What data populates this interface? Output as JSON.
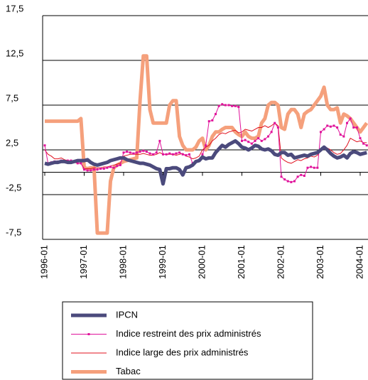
{
  "chart_data": {
    "type": "line",
    "categories": [
      "1996-01",
      null,
      null,
      null,
      null,
      null,
      null,
      null,
      null,
      null,
      null,
      null,
      "1997-01",
      null,
      null,
      null,
      null,
      null,
      null,
      null,
      null,
      null,
      null,
      null,
      "1998-01",
      null,
      null,
      null,
      null,
      null,
      null,
      null,
      null,
      null,
      null,
      null,
      "1999-01",
      null,
      null,
      null,
      null,
      null,
      null,
      null,
      null,
      null,
      null,
      null,
      "2000-01",
      null,
      null,
      null,
      null,
      null,
      null,
      null,
      null,
      null,
      null,
      null,
      "2001-01",
      null,
      null,
      null,
      null,
      null,
      null,
      null,
      null,
      null,
      null,
      null,
      "2002-01",
      null,
      null,
      null,
      null,
      null,
      null,
      null,
      null,
      null,
      null,
      null,
      "2003-01",
      null,
      null,
      null,
      null,
      null,
      null,
      null,
      null,
      null,
      null,
      null,
      "2004-01",
      null,
      null
    ],
    "series": [
      {
        "name": "IPCN",
        "color": "#4b4a7c",
        "width": 5,
        "markers": false,
        "values": [
          1.0,
          0.9,
          1.0,
          1.1,
          1.1,
          1.2,
          1.2,
          1.1,
          1.1,
          1.2,
          1.3,
          1.3,
          1.3,
          1.4,
          1.1,
          0.9,
          0.8,
          0.9,
          1.0,
          1.1,
          1.3,
          1.4,
          1.5,
          1.6,
          1.6,
          1.4,
          1.3,
          1.2,
          1.1,
          1.0,
          1.0,
          0.9,
          0.8,
          0.6,
          0.4,
          0.3,
          -1.3,
          0.4,
          0.4,
          0.5,
          0.5,
          0.3,
          -0.3,
          0.5,
          0.6,
          0.8,
          1.2,
          1.3,
          1.7,
          1.5,
          1.6,
          1.6,
          2.2,
          2.6,
          3.0,
          2.8,
          3.1,
          3.3,
          3.5,
          3.2,
          2.8,
          2.7,
          2.5,
          2.7,
          3.0,
          2.9,
          2.6,
          2.5,
          2.6,
          2.4,
          2.0,
          1.9,
          2.2,
          2.2,
          1.9,
          2.0,
          1.6,
          1.7,
          1.8,
          1.9,
          1.8,
          2.0,
          2.1,
          2.2,
          2.5,
          2.8,
          2.5,
          2.1,
          1.8,
          1.6,
          1.7,
          1.9,
          1.6,
          2.1,
          2.3,
          2.2,
          2.0,
          2.1,
          2.2
        ]
      },
      {
        "name": "Indice restreint des prix administrés",
        "color": "#e0129a",
        "width": 1,
        "markers": true,
        "values": [
          3.0,
          1.0,
          1.1,
          1.2,
          1.2,
          1.3,
          1.2,
          1.3,
          1.3,
          1.2,
          1.0,
          1.0,
          0.3,
          0.2,
          0.2,
          0.3,
          0.3,
          0.4,
          0.4,
          0.5,
          0.6,
          0.5,
          0.7,
          0.8,
          2.2,
          2.3,
          2.2,
          2.1,
          2.2,
          2.3,
          2.4,
          2.3,
          2.1,
          2.0,
          2.2,
          3.5,
          2.0,
          2.0,
          2.1,
          2.0,
          2.1,
          2.2,
          2.0,
          1.9,
          2.0,
          1.0,
          1.2,
          1.3,
          2.0,
          3.0,
          5.7,
          5.8,
          6.5,
          7.4,
          7.6,
          7.5,
          7.5,
          7.4,
          7.4,
          7.3,
          3.5,
          3.6,
          3.4,
          3.2,
          3.5,
          3.8,
          3.5,
          3.7,
          4.0,
          4.5,
          5.5,
          5.0,
          -0.5,
          -0.8,
          -1.0,
          -1.1,
          -1.0,
          -0.5,
          -0.3,
          -0.4,
          0.5,
          0.6,
          0.5,
          0.5,
          4.5,
          4.8,
          5.2,
          5.1,
          5.2,
          5.0,
          4.2,
          4.0,
          5.5,
          6.0,
          5.0,
          5.0,
          3.8,
          3.2,
          3.0
        ]
      },
      {
        "name": "Indice large des prix administrés",
        "color": "#e0101e",
        "width": 1,
        "markers": false,
        "values": [
          2.5,
          2.0,
          1.8,
          1.5,
          1.5,
          1.6,
          1.4,
          1.3,
          1.2,
          1.1,
          1.0,
          1.0,
          0.4,
          0.4,
          0.4,
          0.5,
          0.5,
          0.5,
          0.6,
          0.6,
          0.7,
          0.8,
          0.9,
          1.0,
          1.8,
          1.9,
          2.0,
          2.0,
          2.0,
          2.0,
          2.1,
          2.0,
          1.9,
          1.9,
          2.0,
          2.2,
          2.0,
          2.0,
          2.0,
          2.0,
          1.9,
          2.0,
          2.1,
          1.8,
          1.7,
          1.5,
          1.6,
          1.8,
          2.5,
          2.8,
          3.0,
          3.5,
          3.8,
          4.2,
          4.4,
          4.3,
          4.5,
          4.6,
          4.7,
          4.4,
          4.5,
          4.8,
          4.7,
          4.6,
          4.8,
          5.0,
          5.0,
          5.2,
          5.0,
          5.2,
          5.5,
          5.2,
          1.6,
          1.3,
          1.1,
          1.0,
          1.2,
          1.4,
          1.3,
          1.5,
          1.6,
          1.8,
          1.7,
          1.9,
          2.5,
          2.8,
          2.7,
          2.5,
          2.2,
          2.0,
          2.1,
          2.5,
          3.0,
          3.8,
          3.6,
          3.4,
          3.5,
          3.3,
          3.3
        ]
      },
      {
        "name": "Tabac",
        "color": "#f5a07c",
        "width": 5,
        "markers": false,
        "values": [
          5.7,
          5.7,
          5.7,
          5.7,
          5.7,
          5.7,
          5.7,
          5.7,
          5.7,
          5.7,
          5.7,
          6.0,
          0.5,
          0.4,
          0.5,
          0.5,
          -6.8,
          -6.8,
          -6.8,
          -6.8,
          -1.0,
          0.5,
          0.8,
          1.0,
          1.2,
          1.3,
          1.4,
          1.5,
          1.6,
          8.0,
          13.0,
          13.0,
          7.0,
          5.5,
          5.5,
          5.5,
          5.5,
          5.5,
          7.5,
          8.0,
          8.0,
          4.0,
          3.0,
          2.5,
          2.5,
          2.5,
          2.8,
          3.5,
          3.8,
          2.5,
          3.0,
          4.0,
          4.5,
          4.5,
          4.8,
          5.0,
          5.0,
          5.0,
          4.5,
          4.2,
          4.0,
          4.5,
          4.0,
          3.8,
          3.8,
          4.0,
          5.5,
          6.0,
          7.5,
          7.8,
          7.8,
          7.5,
          5.0,
          4.8,
          6.5,
          7.0,
          7.0,
          6.5,
          5.0,
          6.5,
          6.8,
          7.0,
          7.5,
          8.0,
          8.5,
          9.5,
          7.5,
          7.0,
          7.0,
          7.2,
          5.5,
          6.5,
          6.3,
          6.0,
          5.5,
          5.0,
          4.5,
          5.0,
          5.5
        ]
      }
    ],
    "ylim": [
      -7.5,
      17.5
    ],
    "yticks": [
      {
        "value": -7.5,
        "label": "-7,5"
      },
      {
        "value": -2.5,
        "label": "-2,5"
      },
      {
        "value": 2.5,
        "label": "2,5"
      },
      {
        "value": 7.5,
        "label": "7,5"
      },
      {
        "value": 12.5,
        "label": "12,5"
      },
      {
        "value": 17.5,
        "label": "17,5"
      }
    ],
    "grid": true,
    "legend": "bottom"
  }
}
